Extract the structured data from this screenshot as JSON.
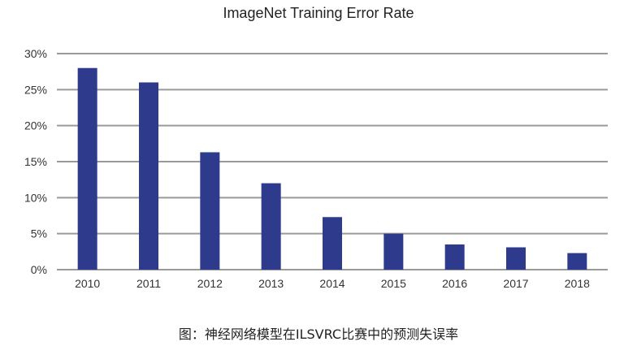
{
  "caption": "图：神经网络模型在ILSVRC比赛中的预测失误率",
  "chart_data": {
    "type": "bar",
    "title": "ImageNet Training Error Rate",
    "xlabel": "",
    "ylabel": "",
    "categories": [
      "2010",
      "2011",
      "2012",
      "2013",
      "2014",
      "2015",
      "2016",
      "2017",
      "2018"
    ],
    "values": [
      28.0,
      26.0,
      16.3,
      12.0,
      7.3,
      5.0,
      3.5,
      3.1,
      2.3
    ],
    "ylim": [
      0,
      30
    ],
    "yticks": [
      0,
      5,
      10,
      15,
      20,
      25,
      30
    ],
    "ytick_labels": [
      "0%",
      "5%",
      "10%",
      "15%",
      "20%",
      "25%",
      "30%"
    ],
    "grid": true,
    "legend": "none",
    "colors": {
      "bar": "#2e3a8c",
      "grid": "#9a9a9a"
    }
  }
}
